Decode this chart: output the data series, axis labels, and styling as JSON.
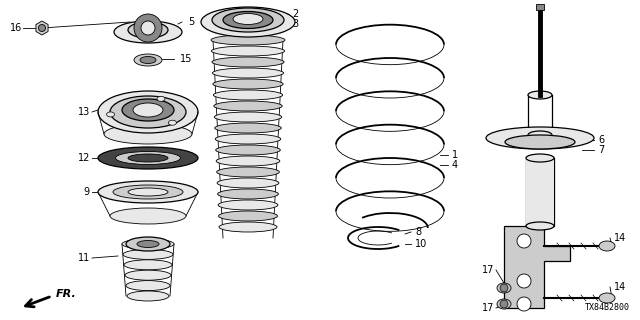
{
  "bg_color": "#ffffff",
  "diagram_code": "TX84B2800",
  "fr_label": "FR.",
  "figsize": [
    6.4,
    3.2
  ],
  "dpi": 100,
  "xlim": [
    0,
    640
  ],
  "ylim": [
    0,
    320
  ]
}
